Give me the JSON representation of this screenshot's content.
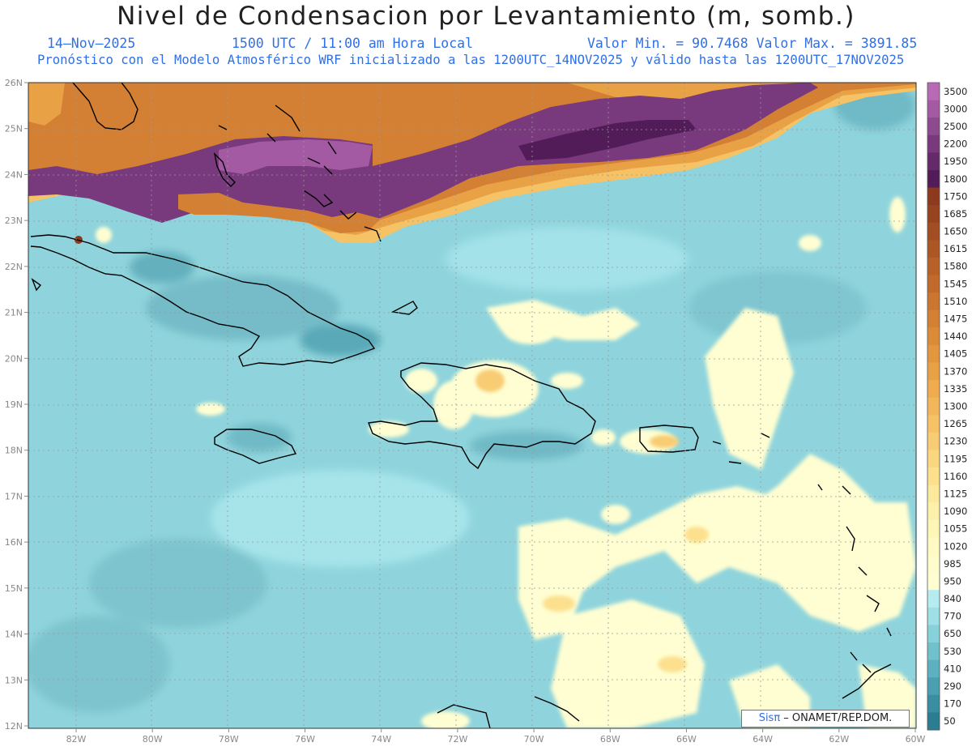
{
  "header": {
    "title": "Nivel de Condensacion por Levantamiento (m, somb.)",
    "date": "14–Nov–2025",
    "time": "1500 UTC / 11:00 am Hora Local",
    "value_range": "Valor Min. = 90.7468   Valor Max. = 3891.85",
    "model_info": "Pronóstico con el Modelo Atmosférico WRF inicializado a las 1200UTC_14NOV2025 y válido hasta las  1200UTC_17NOV2025"
  },
  "map": {
    "lat_labels": [
      "26N",
      "25N",
      "24N",
      "23N",
      "22N",
      "21N",
      "20N",
      "19N",
      "18N",
      "17N",
      "16N",
      "15N",
      "14N",
      "13N",
      "12N"
    ],
    "lon_labels": [
      "82W",
      "80W",
      "78W",
      "76W",
      "74W",
      "72W",
      "70W",
      "68W",
      "66W",
      "64W",
      "62W",
      "60W"
    ],
    "lat_range": [
      12,
      26
    ],
    "lon_range": [
      -83.3,
      -60
    ],
    "background_color": "#8fd4dc"
  },
  "legend": {
    "levels": [
      "3500",
      "3000",
      "2500",
      "2200",
      "1950",
      "1800",
      "1750",
      "1685",
      "1650",
      "1615",
      "1580",
      "1545",
      "1510",
      "1475",
      "1440",
      "1405",
      "1370",
      "1335",
      "1300",
      "1265",
      "1230",
      "1195",
      "1160",
      "1125",
      "1090",
      "1055",
      "1020",
      "985",
      "950",
      "840",
      "770",
      "650",
      "530",
      "410",
      "290",
      "170",
      "50"
    ],
    "colors": [
      "#b86ab6",
      "#a35aa3",
      "#8e4a8f",
      "#79397d",
      "#652a6a",
      "#521c58",
      "#8c3a1e",
      "#97431f",
      "#a24d22",
      "#ad5625",
      "#b76028",
      "#c16a2c",
      "#ca7530",
      "#d38034",
      "#db8b38",
      "#e2963e",
      "#e9a145",
      "#eeac4e",
      "#f2b75a",
      "#f5c266",
      "#f8cc73",
      "#fad680",
      "#fce08e",
      "#fde99c",
      "#fdf0aa",
      "#fef6b8",
      "#fefac2",
      "#fefcca",
      "#fffed2",
      "#b6ecef",
      "#9ee0e6",
      "#86d1da",
      "#71c1cd",
      "#5cb0bf",
      "#4a9fb0",
      "#3a8ea1",
      "#2b7d92"
    ]
  },
  "footer": {
    "credit_brand": "Sisπ",
    "credit_rest": " – ONAMET/REP.DOM."
  }
}
